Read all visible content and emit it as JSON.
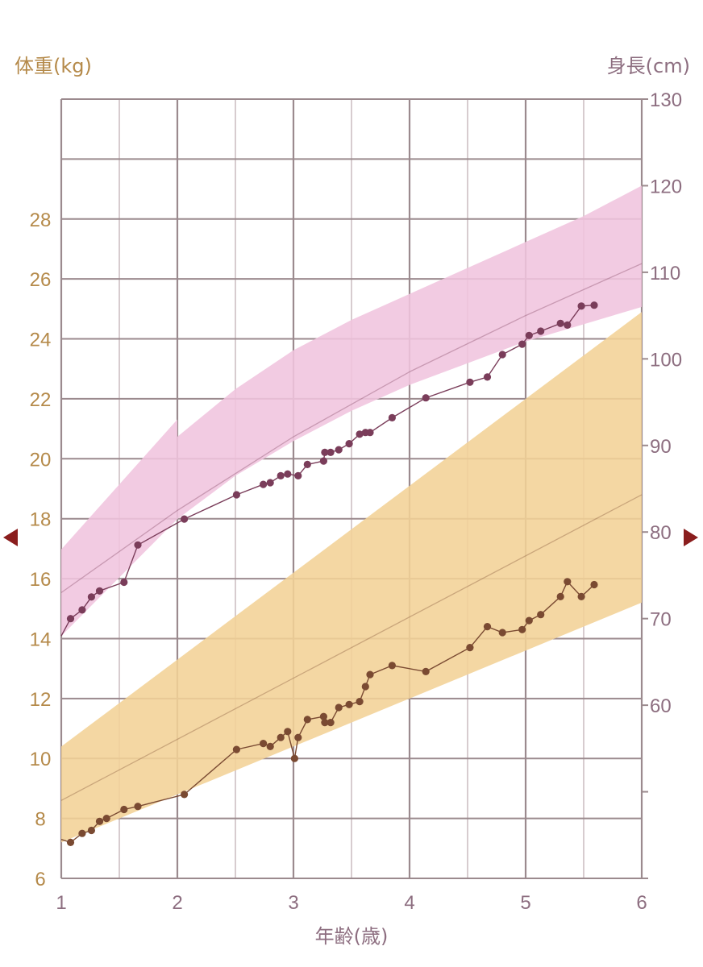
{
  "colors": {
    "weight_label": "#b58a4a",
    "height_label": "#8d6e80",
    "grid_major": "#9b8a8e",
    "grid_minor": "#cdbfc3",
    "height_band": "#f0c4de",
    "weight_band": "#f3d196",
    "height_series": "#7a3d5a",
    "weight_series": "#7a4a32",
    "arrow": "#8a1d1d"
  },
  "nav": {
    "left_icon": "triangle-left",
    "right_icon": "triangle-right"
  },
  "chart_data": {
    "type": "line",
    "ylabel_left": "体重(kg)",
    "ylabel_right": "身長(cm)",
    "xlabel": "年齢(歳)",
    "xlim": [
      1,
      6
    ],
    "xticks": [
      "1",
      "2",
      "3",
      "4",
      "5",
      "6"
    ],
    "ylim_left": [
      6,
      32
    ],
    "yticks_left": [
      "6",
      "8",
      "10",
      "12",
      "14",
      "16",
      "18",
      "20",
      "22",
      "24",
      "26",
      "28"
    ],
    "ylim_right": [
      40,
      130
    ],
    "yticks_right": [
      "60",
      "70",
      "80",
      "90",
      "100",
      "110",
      "120",
      "130"
    ],
    "grid": true,
    "bands": [
      {
        "name": "height_range",
        "axis": "right",
        "segments": [
          {
            "x": [
              1,
              2
            ],
            "lower": [
              68,
              81.5
            ],
            "upper": [
              78,
              93
            ]
          },
          {
            "x": [
              2,
              2.5,
              3,
              3.5,
              4,
              4.5,
              5,
              5.5,
              6
            ],
            "lower": [
              81.5,
              86.5,
              90.5,
              94,
              97,
              99.5,
              102,
              104,
              106
            ],
            "upper": [
              91,
              96.5,
              101,
              104.5,
              107.5,
              110.5,
              113.5,
              116.5,
              120
            ]
          }
        ]
      },
      {
        "name": "weight_range",
        "axis": "left",
        "x": [
          1,
          6
        ],
        "lower": [
          7.2,
          15.2
        ],
        "upper": [
          10.4,
          24.9
        ]
      }
    ],
    "series": [
      {
        "axis": "right",
        "reference": {
          "x": [
            1,
            2,
            3,
            4,
            5,
            6
          ],
          "y": [
            73,
            82.5,
            91,
            98.5,
            105,
            111
          ]
        },
        "x": [
          1.0,
          1.08,
          1.18,
          1.26,
          1.33,
          1.54,
          1.66,
          2.06,
          2.51,
          2.74,
          2.8,
          2.89,
          2.95,
          3.04,
          3.12,
          3.26,
          3.27,
          3.32,
          3.39,
          3.48,
          3.57,
          3.62,
          3.66,
          3.85,
          4.14,
          4.52,
          4.67,
          4.8,
          4.97,
          5.03,
          5.13,
          5.3,
          5.36,
          5.48,
          5.59
        ],
        "y": [
          68,
          70,
          71,
          72.5,
          73.2,
          74.2,
          78.5,
          81.5,
          84.3,
          85.5,
          85.7,
          86.5,
          86.7,
          86.5,
          87.8,
          88.2,
          89.2,
          89.2,
          89.5,
          90.2,
          91.3,
          91.5,
          91.5,
          93.2,
          95.5,
          97.3,
          97.9,
          100.5,
          101.7,
          102.7,
          103.2,
          104.1,
          103.9,
          106.1,
          106.2
        ]
      },
      {
        "axis": "left",
        "reference": {
          "x": [
            1,
            6
          ],
          "y": [
            8.6,
            18.8
          ]
        },
        "x": [
          1.0,
          1.08,
          1.18,
          1.26,
          1.33,
          1.39,
          1.54,
          1.66,
          2.06,
          2.51,
          2.74,
          2.8,
          2.89,
          2.95,
          3.01,
          3.04,
          3.12,
          3.26,
          3.27,
          3.32,
          3.39,
          3.48,
          3.57,
          3.62,
          3.66,
          3.85,
          4.14,
          4.52,
          4.67,
          4.8,
          4.97,
          5.03,
          5.13,
          5.3,
          5.36,
          5.48,
          5.59
        ],
        "y": [
          7.3,
          7.2,
          7.5,
          7.6,
          7.9,
          8.0,
          8.3,
          8.4,
          8.8,
          10.3,
          10.5,
          10.4,
          10.7,
          10.9,
          10.0,
          10.7,
          11.3,
          11.4,
          11.2,
          11.2,
          11.7,
          11.8,
          11.9,
          12.4,
          12.8,
          13.1,
          12.9,
          13.7,
          14.4,
          14.2,
          14.3,
          14.6,
          14.8,
          15.4,
          15.9,
          15.4,
          15.8
        ]
      }
    ]
  }
}
